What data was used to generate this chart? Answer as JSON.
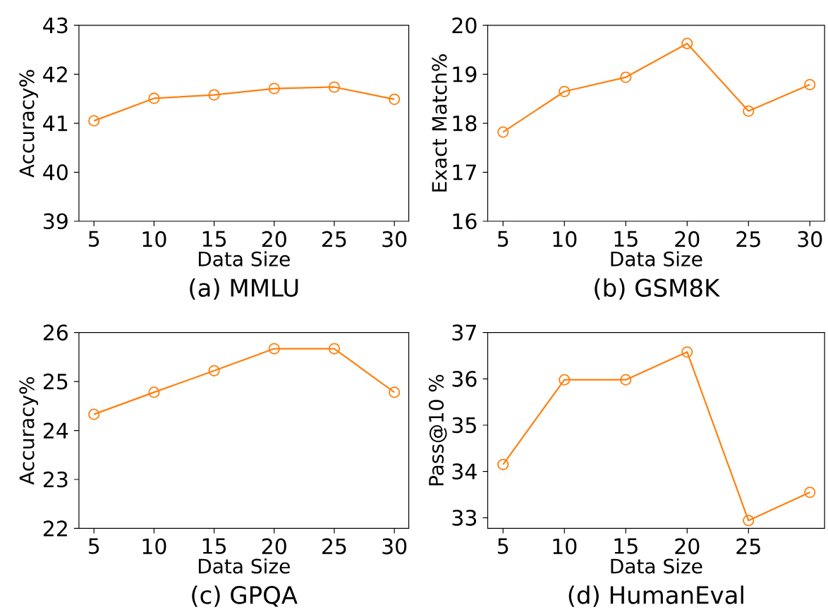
{
  "chart_data": [
    {
      "type": "line",
      "title": "(a) MMLU",
      "xlabel": "Data Size",
      "ylabel": "Accuracy%",
      "x": [
        5,
        10,
        15,
        20,
        25,
        30
      ],
      "xlim": [
        3.75,
        31.2
      ],
      "xticks": [
        5,
        10,
        15,
        20,
        25,
        30
      ],
      "ylim": [
        39,
        43
      ],
      "yticks": [
        39,
        40,
        41,
        42,
        43
      ],
      "marker": "circle",
      "series": [
        {
          "color": "#ff7f0e",
          "values": [
            41.05,
            41.51,
            41.58,
            41.71,
            41.74,
            41.49
          ]
        }
      ]
    },
    {
      "type": "line",
      "title": "(b) GSM8K",
      "xlabel": "Data Size",
      "ylabel": "Exact Match%",
      "x": [
        5,
        10,
        15,
        20,
        25,
        30
      ],
      "xlim": [
        3.75,
        31.2
      ],
      "xticks": [
        5,
        10,
        15,
        20,
        25,
        30
      ],
      "ylim": [
        16,
        20
      ],
      "yticks": [
        16,
        17,
        18,
        19,
        20
      ],
      "marker": "circle",
      "series": [
        {
          "color": "#ff7f0e",
          "values": [
            17.82,
            18.65,
            18.94,
            19.63,
            18.25,
            18.79
          ]
        }
      ]
    },
    {
      "type": "line",
      "title": "(c) GPQA",
      "xlabel": "Data Size",
      "ylabel": "Accuracy%",
      "x": [
        5,
        10,
        15,
        20,
        25,
        30
      ],
      "xlim": [
        3.75,
        31.2
      ],
      "xticks": [
        5,
        10,
        15,
        20,
        25,
        30
      ],
      "ylim": [
        22,
        26
      ],
      "yticks": [
        22,
        23,
        24,
        25,
        26
      ],
      "marker": "circle",
      "series": [
        {
          "color": "#ff7f0e",
          "values": [
            24.33,
            24.78,
            25.22,
            25.67,
            25.67,
            24.78
          ]
        }
      ]
    },
    {
      "type": "line",
      "title": "(d) HumanEval",
      "xlabel": "Data Size",
      "ylabel": "Pass@10 %",
      "x": [
        5,
        10,
        15,
        20,
        25,
        30
      ],
      "xlim": [
        3.75,
        31.2
      ],
      "xticks": [
        5,
        10,
        15,
        20,
        25
      ],
      "ylim": [
        32.77,
        37
      ],
      "yticks": [
        33,
        34,
        35,
        36,
        37
      ],
      "marker": "circle",
      "series": [
        {
          "color": "#ff7f0e",
          "values": [
            34.15,
            35.98,
            35.98,
            36.58,
            32.94,
            33.55
          ]
        }
      ]
    }
  ]
}
